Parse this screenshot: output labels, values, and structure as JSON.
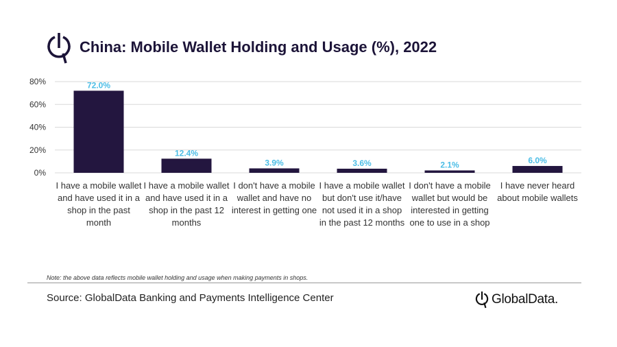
{
  "title": "China: Mobile Wallet Holding and Usage (%), 2022",
  "note": "Note: the above data reflects mobile wallet holding and usage when making payments in shops.",
  "source": "Source: GlobalData Banking and Payments Intelligence Center",
  "brand": {
    "name": "GlobalData.",
    "logo_icon": "globaldata-logo-icon"
  },
  "colors": {
    "bar": "#23163f",
    "data_label": "#4bbde6",
    "grid": "#d9d9d9",
    "axis_text": "#333333"
  },
  "chart_data": {
    "type": "bar",
    "categories": [
      "I have a mobile wallet and have used it in a shop in the past month",
      "I have a mobile wallet and have used it in a shop in the past 12 months",
      "I don't have a mobile wallet and have no interest in getting one",
      "I have a mobile wallet but don't use it/have not used it in a shop in the past 12 months",
      "I don't have a mobile wallet but would be interested in getting one to use in a shop",
      "I have never heard about mobile wallets"
    ],
    "values": [
      72.0,
      12.4,
      3.9,
      3.6,
      2.1,
      6.0
    ],
    "data_labels": [
      "72.0%",
      "12.4%",
      "3.9%",
      "3.6%",
      "2.1%",
      "6.0%"
    ],
    "yticks": [
      "0%",
      "20%",
      "40%",
      "60%",
      "80%"
    ],
    "ylim": [
      0,
      80
    ],
    "grid": true,
    "title": "China: Mobile Wallet Holding and Usage (%), 2022",
    "xlabel": "",
    "ylabel": ""
  }
}
